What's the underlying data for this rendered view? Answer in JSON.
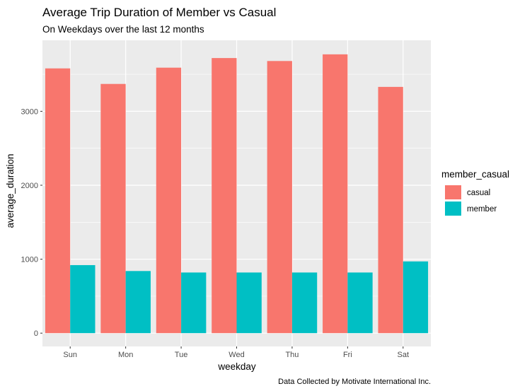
{
  "chart_data": {
    "type": "bar",
    "title": "Average Trip Duration of Member vs Casual",
    "subtitle": "On Weekdays over the last 12 months",
    "caption": "Data Collected by Motivate International Inc.",
    "xlabel": "weekday",
    "ylabel": "average_duration",
    "categories": [
      "Sun",
      "Mon",
      "Tue",
      "Wed",
      "Thu",
      "Fri",
      "Sat"
    ],
    "yticks": [
      0,
      1000,
      2000,
      3000
    ],
    "ylim": [
      -180,
      3960
    ],
    "grid": true,
    "legend": {
      "title": "member_casual",
      "position": "right"
    },
    "series": [
      {
        "name": "casual",
        "color": "#F8766D",
        "values": [
          3580,
          3370,
          3590,
          3720,
          3680,
          3770,
          3330
        ]
      },
      {
        "name": "member",
        "color": "#00BFC4",
        "values": [
          920,
          840,
          820,
          820,
          820,
          820,
          970
        ]
      }
    ]
  }
}
